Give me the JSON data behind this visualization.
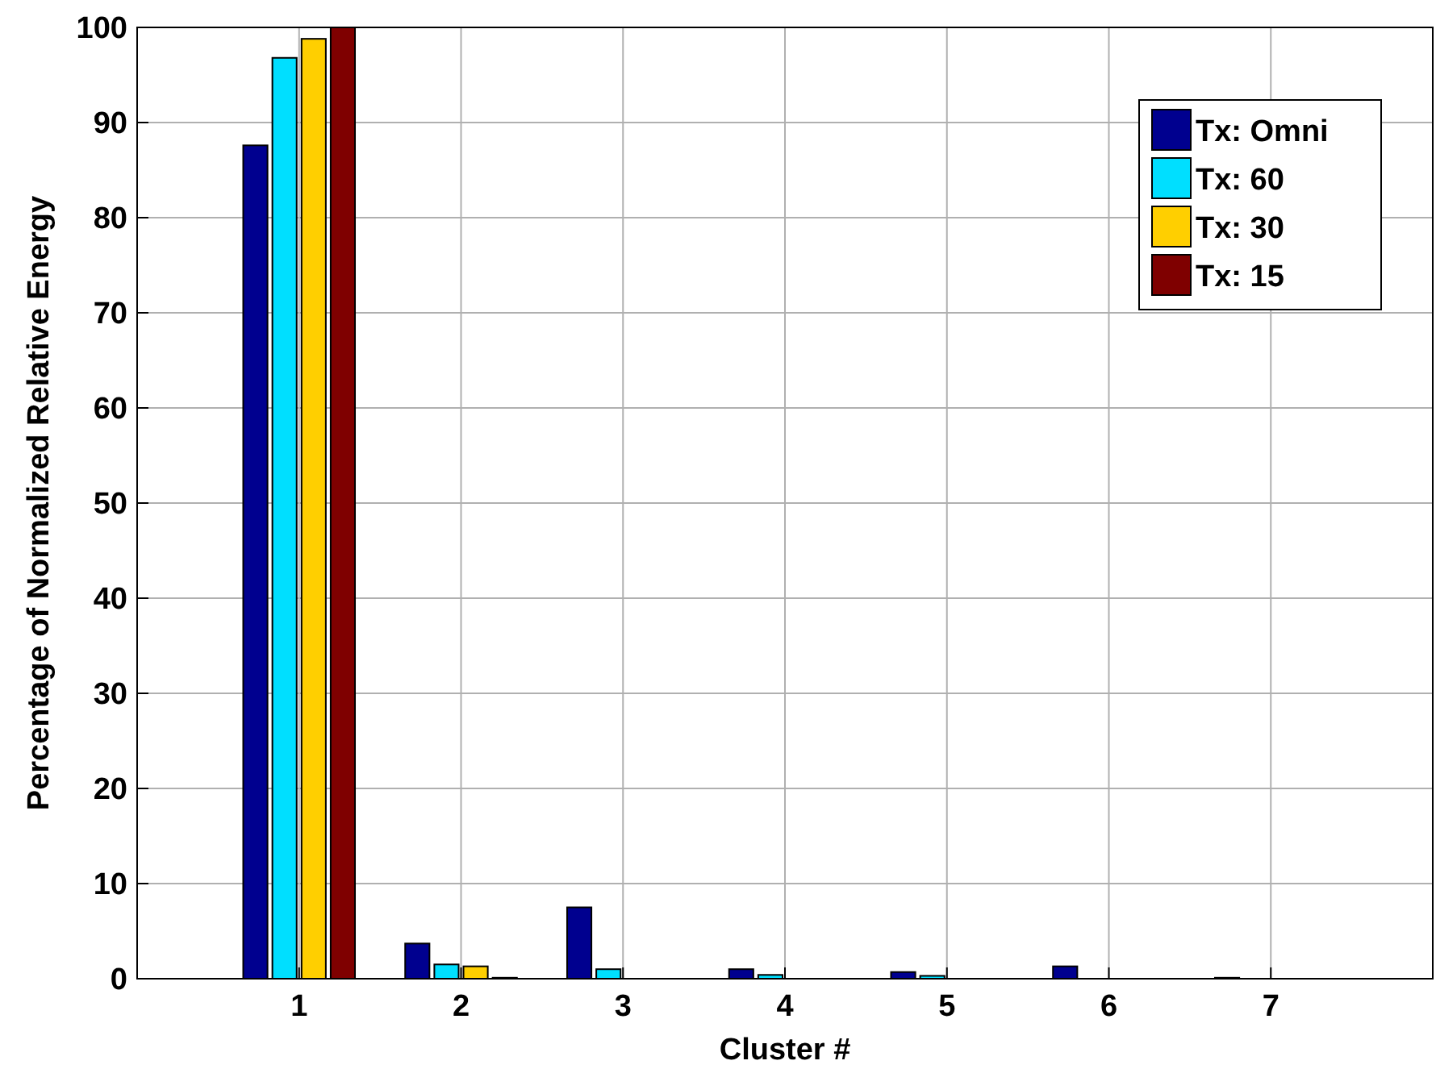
{
  "chart_data": {
    "type": "bar",
    "xlabel": "Cluster #",
    "ylabel": "Percentage of Normalized Relative Energy",
    "x": [
      1,
      2,
      3,
      4,
      5,
      6,
      7
    ],
    "xlim": [
      0,
      8
    ],
    "xticks": [
      1,
      2,
      3,
      4,
      5,
      6,
      7
    ],
    "ylim": [
      0,
      100
    ],
    "yticks": [
      0,
      10,
      20,
      30,
      40,
      50,
      60,
      70,
      80,
      90,
      100
    ],
    "grid": true,
    "legend": "top right",
    "series": [
      {
        "name": "Tx: Omni",
        "color": "#00008f",
        "values": [
          87.6,
          3.7,
          7.5,
          1.0,
          0.7,
          1.3,
          0.1
        ]
      },
      {
        "name": "Tx: 60",
        "color": "#00dfff",
        "values": [
          96.8,
          1.5,
          1.0,
          0.4,
          0.3,
          0,
          0
        ]
      },
      {
        "name": "Tx: 30",
        "color": "#ffcf00",
        "values": [
          98.8,
          1.3,
          0,
          0,
          0,
          0,
          0
        ]
      },
      {
        "name": "Tx: 15",
        "color": "#7f0000",
        "values": [
          100,
          0.1,
          0,
          0,
          0,
          0,
          0
        ]
      }
    ]
  }
}
